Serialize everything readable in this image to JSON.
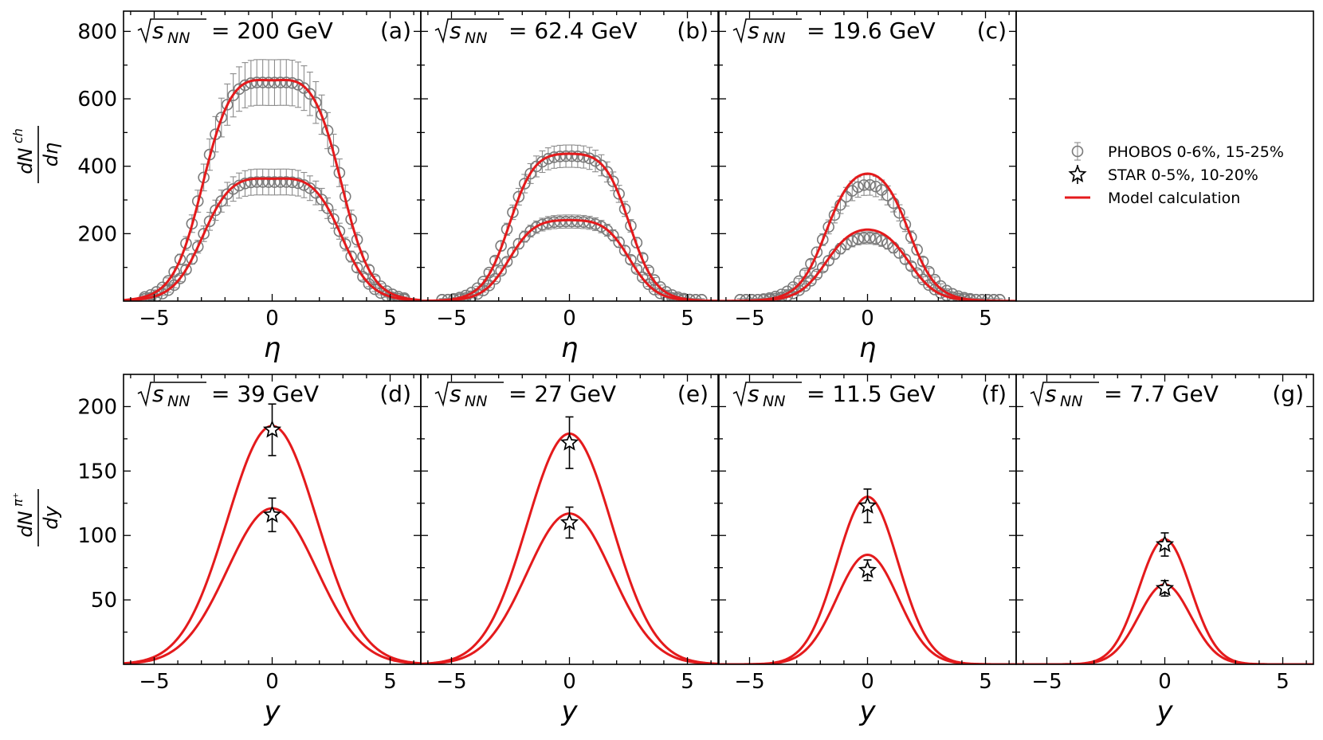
{
  "chart_data": {
    "type": "line",
    "title": "",
    "rows": [
      {
        "ylabel": "dN^ch/dη",
        "ylabel_numerator": "dN",
        "ylabel_sup": "ch",
        "ylabel_denominator": "dη",
        "xlabel": "η",
        "ylim": [
          0,
          860
        ],
        "yticks": [
          "200",
          "400",
          "600",
          "800"
        ],
        "ytick_values": [
          200,
          400,
          600,
          800
        ],
        "xlim": [
          -6.3,
          6.3
        ],
        "xticks": [
          "−5",
          "0",
          "5"
        ],
        "xtick_values": [
          -5,
          0,
          5
        ]
      },
      {
        "ylabel": "dN^π+/dy",
        "ylabel_numerator": "dN",
        "ylabel_sup": "π⁺",
        "ylabel_denominator": "dy",
        "xlabel": "y",
        "ylim": [
          0,
          225
        ],
        "yticks": [
          "50",
          "100",
          "150",
          "200"
        ],
        "ytick_values": [
          50,
          100,
          150,
          200
        ],
        "xlim": [
          -6.3,
          6.3
        ],
        "xticks": [
          "−5",
          "0",
          "5"
        ],
        "xtick_values": [
          -5,
          0,
          5
        ]
      }
    ],
    "panels": [
      {
        "id": "a",
        "row": 0,
        "col": 0,
        "energy_value": "= 200 GeV",
        "panel_label": "(a)",
        "model": [
          {
            "centrality": "0-6%",
            "peak": 655,
            "plateau_halfwidth": 2.95,
            "diffuseness": 0.62,
            "dip": 0.035
          },
          {
            "centrality": "15-25%",
            "peak": 363,
            "plateau_halfwidth": 2.95,
            "diffuseness": 0.62,
            "dip": 0.035
          }
        ],
        "phobos": [
          {
            "centrality": "0-6%",
            "peak": 648,
            "plateau_halfwidth": 3.0,
            "diffuseness": 0.6,
            "dip": 0.03,
            "rel_err": 0.1
          },
          {
            "centrality": "15-25%",
            "peak": 353,
            "plateau_halfwidth": 3.0,
            "diffuseness": 0.6,
            "dip": 0.03,
            "rel_err": 0.1
          }
        ]
      },
      {
        "id": "b",
        "row": 0,
        "col": 1,
        "energy_value": "= 62.4 GeV",
        "panel_label": "(b)",
        "model": [
          {
            "centrality": "0-6%",
            "peak": 437,
            "plateau_halfwidth": 2.55,
            "diffuseness": 0.55,
            "dip": 0.02
          },
          {
            "centrality": "15-25%",
            "peak": 240,
            "plateau_halfwidth": 2.55,
            "diffuseness": 0.55,
            "dip": 0.02
          }
        ],
        "phobos": [
          {
            "centrality": "0-6%",
            "peak": 430,
            "plateau_halfwidth": 2.6,
            "diffuseness": 0.55,
            "dip": 0.02,
            "rel_err": 0.07
          },
          {
            "centrality": "15-25%",
            "peak": 236,
            "plateau_halfwidth": 2.6,
            "diffuseness": 0.55,
            "dip": 0.02,
            "rel_err": 0.07
          }
        ]
      },
      {
        "id": "c",
        "row": 0,
        "col": 2,
        "energy_value": "= 19.6 GeV",
        "panel_label": "(c)",
        "model": [
          {
            "centrality": "0-6%",
            "peak": 378,
            "plateau_halfwidth": 1.75,
            "diffuseness": 0.58,
            "dip": 0.0
          },
          {
            "centrality": "15-25%",
            "peak": 212,
            "plateau_halfwidth": 1.75,
            "diffuseness": 0.58,
            "dip": 0.0
          }
        ],
        "phobos": [
          {
            "centrality": "0-6%",
            "peak": 345,
            "plateau_halfwidth": 1.85,
            "diffuseness": 0.62,
            "dip": 0.0,
            "rel_err": 0.08
          },
          {
            "centrality": "15-25%",
            "peak": 188,
            "plateau_halfwidth": 1.85,
            "diffuseness": 0.62,
            "dip": 0.0,
            "rel_err": 0.08
          }
        ]
      },
      {
        "id": "d",
        "row": 1,
        "col": 0,
        "energy_value": "= 39 GeV",
        "panel_label": "(d)",
        "model": [
          {
            "centrality": "0-5%",
            "peak": 185,
            "sigma": 1.9
          },
          {
            "centrality": "10-20%",
            "peak": 121,
            "sigma": 1.9
          }
        ],
        "star": [
          {
            "centrality": "0-5%",
            "y": 0,
            "value": 182,
            "err": 20
          },
          {
            "centrality": "10-20%",
            "y": 0,
            "value": 116,
            "err": 13
          }
        ]
      },
      {
        "id": "e",
        "row": 1,
        "col": 1,
        "energy_value": "= 27 GeV",
        "panel_label": "(e)",
        "model": [
          {
            "centrality": "0-5%",
            "peak": 179,
            "sigma": 1.8
          },
          {
            "centrality": "10-20%",
            "peak": 117,
            "sigma": 1.8
          }
        ],
        "star": [
          {
            "centrality": "0-5%",
            "y": 0,
            "value": 172,
            "err": 20
          },
          {
            "centrality": "10-20%",
            "y": 0,
            "value": 110,
            "err": 12
          }
        ]
      },
      {
        "id": "f",
        "row": 1,
        "col": 2,
        "energy_value": "= 11.5 GeV",
        "panel_label": "(f)",
        "model": [
          {
            "centrality": "0-5%",
            "peak": 130,
            "sigma": 1.3
          },
          {
            "centrality": "10-20%",
            "peak": 85,
            "sigma": 1.3
          }
        ],
        "star": [
          {
            "centrality": "0-5%",
            "y": 0,
            "value": 123,
            "err": 13
          },
          {
            "centrality": "10-20%",
            "y": 0,
            "value": 73,
            "err": 8
          }
        ]
      },
      {
        "id": "g",
        "row": 1,
        "col": 3,
        "energy_value": "= 7.7 GeV",
        "panel_label": "(g)",
        "model": [
          {
            "centrality": "0-5%",
            "peak": 97,
            "sigma": 1.1
          },
          {
            "centrality": "10-20%",
            "peak": 62,
            "sigma": 1.1
          }
        ],
        "star": [
          {
            "centrality": "0-5%",
            "y": 0,
            "value": 93,
            "err": 9
          },
          {
            "centrality": "10-20%",
            "y": 0,
            "value": 59,
            "err": 6
          }
        ]
      }
    ],
    "energy_prefix": "s",
    "energy_subscript": "NN",
    "legend": {
      "placement": "top-right panel",
      "entries": [
        {
          "marker": "circle",
          "label": "PHOBOS 0-6%, 15-25%"
        },
        {
          "marker": "star",
          "label": "STAR 0-5%, 10-20%"
        },
        {
          "marker": "line",
          "label": "Model calculation"
        }
      ]
    }
  },
  "colors": {
    "model": "#e41a1c",
    "phobos": "#7a7a7a",
    "star": "#000000"
  }
}
